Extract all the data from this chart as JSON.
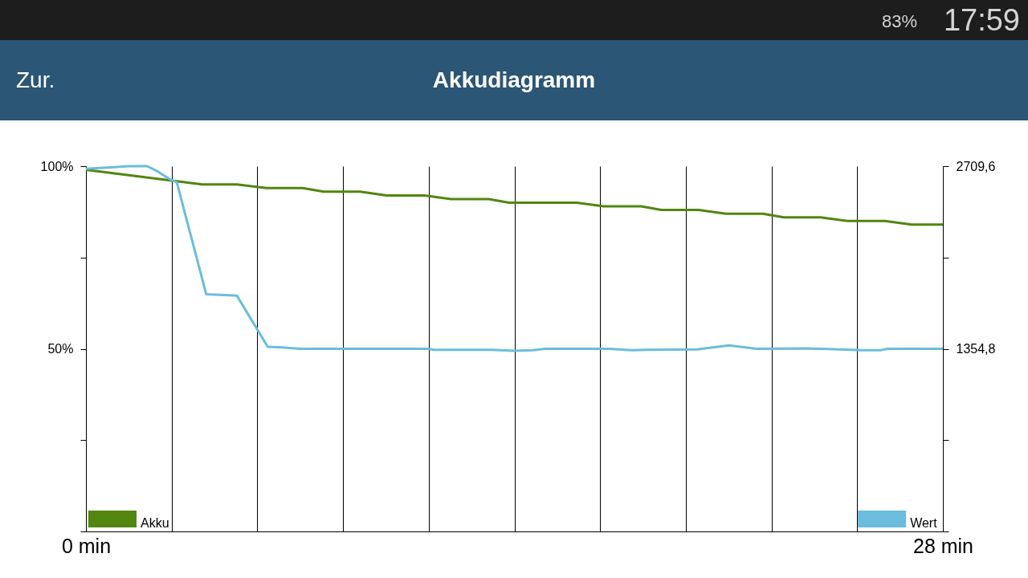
{
  "chart_data": {
    "type": "line",
    "title": "Akkudiagramm",
    "annotations": [
      "Zur.",
      "83%",
      "17:59"
    ],
    "xlim": [
      0,
      28
    ],
    "xticks": [
      {
        "value": 0,
        "label": "0 min"
      },
      {
        "value": 2.8,
        "label": null
      },
      {
        "value": 5.6,
        "label": null
      },
      {
        "value": 8.4,
        "label": null
      },
      {
        "value": 11.2,
        "label": null
      },
      {
        "value": 14,
        "label": null
      },
      {
        "value": 16.8,
        "label": null
      },
      {
        "value": 19.6,
        "label": null
      },
      {
        "value": 22.4,
        "label": null
      },
      {
        "value": 25.2,
        "label": null
      },
      {
        "value": 28,
        "label": "28 min"
      }
    ],
    "ylim": [
      0,
      100
    ],
    "yticks": [
      {
        "value": 0,
        "label": null
      },
      {
        "value": 25,
        "label": null
      },
      {
        "value": 50,
        "label": "50%"
      },
      {
        "value": 75,
        "label": null
      },
      {
        "value": 100,
        "label": "100%"
      }
    ],
    "y2lim": [
      0,
      2709.6
    ],
    "y2ticks": [
      {
        "value": 0,
        "label": null
      },
      {
        "value": 677.4,
        "label": null
      },
      {
        "value": 1354.8,
        "label": "1354,8"
      },
      {
        "value": 2032.2,
        "label": null
      },
      {
        "value": 2709.6,
        "label": "2709,6"
      }
    ],
    "grid": "x",
    "legend": "bottom",
    "series": [
      {
        "name": "Akku",
        "color": "#52860e",
        "x": [
          0,
          3.8,
          4.93,
          5.9,
          7.08,
          7.77,
          8.96,
          9.83,
          11.06,
          11.93,
          13.16,
          13.83,
          16.04,
          16.92,
          18.14,
          18.8,
          20.02,
          20.91,
          22.12,
          22.8,
          24.0,
          24.88,
          26.1,
          26.98,
          28
        ],
        "values": [
          99,
          95,
          95,
          94,
          94,
          93,
          93,
          92,
          92,
          91,
          91,
          90,
          90,
          89,
          89,
          88,
          88,
          87,
          87,
          86,
          86,
          85,
          85,
          84,
          84
        ]
      },
      {
        "name": "Wert",
        "color": "#6bbcdd",
        "axis": "y2",
        "x": [
          0,
          0.82,
          1.39,
          2.0,
          2.35,
          2.76,
          2.97,
          3.93,
          4.93,
          5.94,
          6.4,
          7.0,
          11.15,
          11.38,
          13.26,
          14.0,
          14.6,
          15.0,
          17.1,
          17.85,
          18.3,
          19.96,
          21.01,
          21.92,
          23.57,
          24.62,
          25.37,
          25.98,
          26.2,
          28
        ],
        "values": [
          2690,
          2700,
          2709.6,
          2709.6,
          2670,
          2610,
          2590,
          1760,
          1750,
          1370,
          1365,
          1355,
          1355,
          1348,
          1348,
          1340,
          1345,
          1355,
          1355,
          1345,
          1348,
          1350,
          1380,
          1355,
          1358,
          1350,
          1345,
          1345,
          1355,
          1355
        ]
      }
    ]
  }
}
